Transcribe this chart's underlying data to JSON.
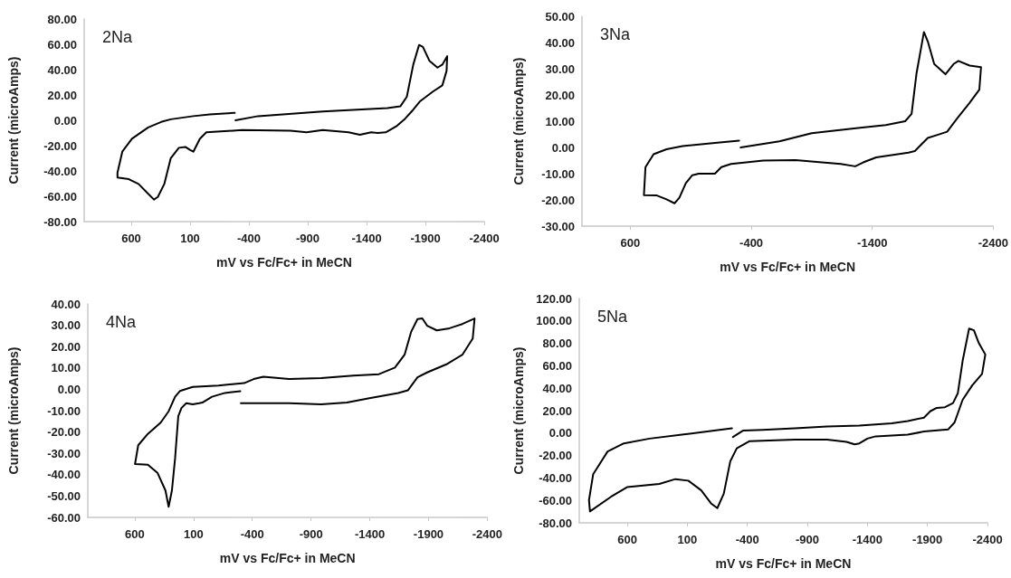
{
  "chart_data": [
    {
      "type": "line",
      "title": "2Na",
      "xlabel": "mV vs Fc/Fc+ in MeCN",
      "ylabel": "Current (microAmps)",
      "marker": "none",
      "line_style": "solid",
      "xlim": [
        1000,
        -2400
      ],
      "xticks": [
        600,
        100,
        -400,
        -900,
        -1400,
        -1900,
        -2400
      ],
      "ylim": [
        -80,
        80
      ],
      "yticks": [
        {
          "value": -80,
          "label": "-80.00"
        },
        {
          "value": -60,
          "label": "-60.00"
        },
        {
          "value": -40,
          "label": "-40.00"
        },
        {
          "value": -20,
          "label": "-20.00"
        },
        {
          "value": 0,
          "label": "0.00"
        },
        {
          "value": 20,
          "label": "20.00"
        },
        {
          "value": 40,
          "label": "40.00"
        },
        {
          "value": 60,
          "label": "60.00"
        },
        {
          "value": 80,
          "label": "80.00"
        }
      ],
      "series": [
        {
          "color": "#000000",
          "x": [
            -286,
            -478,
            -1027,
            -1577,
            -1687,
            -1742,
            -1797,
            -1846,
            -1879,
            -1934,
            -2003,
            -2044,
            -2085,
            -2080,
            -2044,
            -1961,
            -1852,
            -1797,
            -1728,
            -1659,
            -1563,
            -1494,
            -1439,
            -1343,
            -1247,
            -1027,
            -890,
            -753,
            -341,
            -38,
            17,
            72,
            99,
            140,
            195,
            264,
            319,
            374,
            407,
            456,
            538,
            621,
            717,
            717,
            676,
            594,
            456,
            346,
            264,
            72,
            -66,
            -280
          ],
          "values": [
            0,
            3.3,
            7,
            9.7,
            11,
            18.6,
            44,
            59.5,
            58,
            47,
            41.6,
            44,
            50.6,
            39,
            27.6,
            22.5,
            14.8,
            8.4,
            1.3,
            -4.3,
            -9.5,
            -10,
            -9.5,
            -11.5,
            -9.5,
            -7.7,
            -9.5,
            -8.2,
            -7.7,
            -9.5,
            -14.6,
            -24.8,
            -23.5,
            -21,
            -21.7,
            -29.9,
            -50.3,
            -60.5,
            -62.6,
            -58,
            -50.3,
            -46.5,
            -45.2,
            -41.4,
            -24.8,
            -14.6,
            -5.6,
            -1.3,
            0.8,
            3.3,
            4.6,
            5.9
          ]
        }
      ]
    },
    {
      "type": "line",
      "title": "3Na",
      "xlabel": "mV vs Fc/Fc+ in MeCN",
      "ylabel": "Current (microAmps)",
      "marker": "none",
      "line_style": "solid",
      "xlim": [
        1000,
        -2400
      ],
      "xticks": [
        600,
        -400,
        -1400,
        -2400
      ],
      "ylim": [
        -30,
        50
      ],
      "yticks": [
        {
          "value": -30,
          "label": "-30.00"
        },
        {
          "value": -20,
          "label": "-20.00"
        },
        {
          "value": -10,
          "label": "-10.00"
        },
        {
          "value": 0,
          "label": "0.00"
        },
        {
          "value": 10,
          "label": "10.00"
        },
        {
          "value": 20,
          "label": "20.00"
        },
        {
          "value": 30,
          "label": "30.00"
        },
        {
          "value": 40,
          "label": "40.00"
        },
        {
          "value": 50,
          "label": "50.00"
        }
      ],
      "series": [
        {
          "color": "#000000",
          "x": [
            -312,
            -632,
            -899,
            -1299,
            -1512,
            -1672,
            -1725,
            -1765,
            -1827,
            -1859,
            -1912,
            -2005,
            -2072,
            -2112,
            -2205,
            -2299,
            -2285,
            -2205,
            -2099,
            -2019,
            -1939,
            -1859,
            -1805,
            -1752,
            -1699,
            -1432,
            -1325,
            -1259,
            -1139,
            -765,
            -499,
            -232,
            -152,
            -99,
            -45,
            35,
            88,
            141,
            195,
            235,
            301,
            381,
            488,
            475,
            408,
            301,
            168,
            -99,
            -299
          ],
          "values": [
            0,
            2.3,
            5.4,
            7.5,
            8.5,
            10,
            12.8,
            28,
            44,
            40.4,
            31.8,
            27.9,
            31.8,
            33,
            31.2,
            30.6,
            22,
            17,
            10.9,
            6,
            4.8,
            3.6,
            1.1,
            -1.4,
            -2,
            -3.8,
            -5.7,
            -7.2,
            -6.3,
            -4.8,
            -5,
            -6.3,
            -7.5,
            -10,
            -10,
            -10,
            -10.6,
            -13.6,
            -19.2,
            -21.3,
            -19.8,
            -18.3,
            -18.2,
            -7.5,
            -2.6,
            -0.7,
            0.5,
            1.7,
            2.6
          ]
        }
      ]
    },
    {
      "type": "line",
      "title": "4Na",
      "xlabel": "mV vs Fc/Fc+ in MeCN",
      "ylabel": "Current (microAmps)",
      "marker": "none",
      "line_style": "solid",
      "xlim": [
        1000,
        -2400
      ],
      "xticks": [
        600,
        100,
        -400,
        -900,
        -1400,
        -1900,
        -2400
      ],
      "ylim": [
        -60,
        40
      ],
      "yticks": [
        {
          "value": -60,
          "label": "-60.00"
        },
        {
          "value": -50,
          "label": "-50.00"
        },
        {
          "value": -40,
          "label": "-40.00"
        },
        {
          "value": -30,
          "label": "-30.00"
        },
        {
          "value": -20,
          "label": "-20.00"
        },
        {
          "value": -10,
          "label": "-10.00"
        },
        {
          "value": 0,
          "label": "0.00"
        },
        {
          "value": 10,
          "label": "10.00"
        },
        {
          "value": 20,
          "label": "20.00"
        },
        {
          "value": 30,
          "label": "30.00"
        },
        {
          "value": 40,
          "label": "40.00"
        }
      ],
      "series": [
        {
          "color": "#000000",
          "x": [
            -298,
            -167,
            -57,
            25,
            52,
            107,
            162,
            203,
            230,
            257,
            284,
            312,
            339,
            407,
            489,
            598,
            571,
            489,
            380,
            312,
            257,
            216,
            107,
            -112,
            -330,
            -412,
            -494,
            -713,
            -986,
            -1259,
            -1478,
            -1614,
            -1696,
            -1751,
            -1806,
            -1847,
            -1888,
            -1970,
            -2079,
            -2188,
            -2292,
            -2276,
            -2188,
            -2052,
            -1888,
            -1806,
            -1724,
            -1642,
            -1396,
            -1205,
            -986,
            -713,
            -303
          ],
          "values": [
            -0.9,
            -1.7,
            -3.5,
            -6.2,
            -6.5,
            -7,
            -6.5,
            -8.8,
            -12.6,
            -32.3,
            -47.4,
            -55,
            -47.4,
            -39.1,
            -35.3,
            -35,
            -26.2,
            -20.9,
            -15.6,
            -10.3,
            -3.5,
            -0.8,
            1.1,
            1.8,
            2.9,
            4.8,
            5.9,
            4.8,
            5.3,
            6.4,
            7.1,
            10.2,
            16.2,
            26.8,
            32.9,
            33.2,
            29.8,
            27.6,
            28.6,
            30.6,
            33.2,
            23.8,
            16.2,
            11.7,
            7.9,
            5.6,
            -0.5,
            -1.7,
            -4.2,
            -6.2,
            -7,
            -6.5,
            -6.5
          ]
        }
      ]
    },
    {
      "type": "line",
      "title": "5Na",
      "xlabel": "mV vs Fc/Fc+ in MeCN",
      "ylabel": "Current (microAmps)",
      "marker": "none",
      "line_style": "solid",
      "xlim": [
        1000,
        -2400
      ],
      "xticks": [
        600,
        100,
        -400,
        -900,
        -1400,
        -1900,
        -2400
      ],
      "ylim": [
        -80,
        120
      ],
      "yticks": [
        {
          "value": -80,
          "label": "-80.00"
        },
        {
          "value": -60,
          "label": "-60.00"
        },
        {
          "value": -40,
          "label": "-40.00"
        },
        {
          "value": -20,
          "label": "-20.00"
        },
        {
          "value": 0,
          "label": "0.00"
        },
        {
          "value": 20,
          "label": "20.00"
        },
        {
          "value": 40,
          "label": "40.00"
        },
        {
          "value": 60,
          "label": "60.00"
        },
        {
          "value": 80,
          "label": "80.00"
        },
        {
          "value": 100,
          "label": "100.00"
        },
        {
          "value": 120,
          "label": "120.00"
        }
      ],
      "series": [
        {
          "color": "#000000",
          "x": [
            -280,
            -366,
            -527,
            -796,
            -1064,
            -1333,
            -1602,
            -1736,
            -1871,
            -1925,
            -1978,
            -2046,
            -2113,
            -2153,
            -2193,
            -2247,
            -2287,
            -2328,
            -2382,
            -2355,
            -2274,
            -2193,
            -2126,
            -2072,
            -1871,
            -1736,
            -1468,
            -1400,
            -1333,
            -1293,
            -1226,
            -1064,
            -796,
            -419,
            -312,
            -258,
            -204,
            -150,
            -97,
            -16,
            92,
            199,
            333,
            467,
            602,
            736,
            911,
            919,
            884,
            764,
            629,
            414,
            145,
            -124,
            -272
          ],
          "values": [
            -3.5,
            2.3,
            2.9,
            4.3,
            5.8,
            6.6,
            8.7,
            10.7,
            13.8,
            19.6,
            22.5,
            23.1,
            26.8,
            35.5,
            64.3,
            93.2,
            91.7,
            80.2,
            70.1,
            52.8,
            42.7,
            29.7,
            9.5,
            3.2,
            1.4,
            -1.4,
            -2.9,
            -4.9,
            -9.2,
            -10.1,
            -7.8,
            -5.8,
            -5.8,
            -7.2,
            -13.6,
            -25.1,
            -53.9,
            -66.9,
            -62.6,
            -51.1,
            -42.4,
            -41,
            -45.3,
            -46.7,
            -48.2,
            -56.8,
            -69.8,
            -59.7,
            -36.6,
            -16.4,
            -9.2,
            -4.9,
            -1.4,
            2.3,
            4.3
          ]
        }
      ]
    }
  ]
}
